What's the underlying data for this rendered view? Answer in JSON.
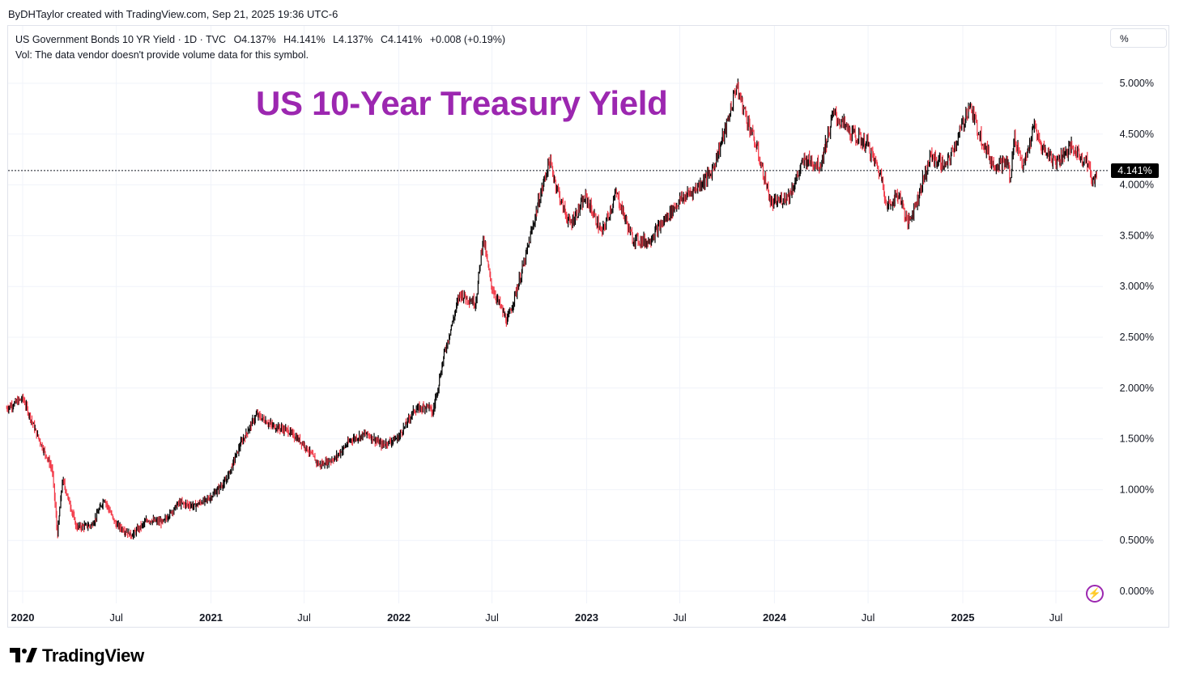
{
  "credit": "ByDHTaylor created with TradingView.com, Sep 21, 2025 19:36 UTC-6",
  "legend": {
    "symbol": "US Government Bonds 10 YR Yield · 1D · TVC",
    "open": "O4.137%",
    "high": "H4.141%",
    "low": "L4.137%",
    "close": "C4.141%",
    "change": "+0.008 (+0.19%)",
    "vol_note": "Vol: The data vendor doesn't provide volume data for this symbol."
  },
  "unit_label": "%",
  "headline": "US 10-Year Treasury Yield",
  "brand": "TradingView",
  "colors": {
    "up": "#000000",
    "down": "#f23645",
    "headline": "#9c27b0",
    "grid": "#f0f3fa"
  },
  "icons": {
    "flash": "lightning-icon",
    "logo": "tradingview-logo-icon"
  },
  "chart_data": {
    "type": "line",
    "title": "US 10-Year Treasury Yield",
    "xlabel": "",
    "ylabel": "",
    "ylim": [
      -0.05,
      5.1
    ],
    "y_ticks": [
      "0.000%",
      "0.500%",
      "1.000%",
      "1.500%",
      "2.000%",
      "2.500%",
      "3.000%",
      "3.500%",
      "4.000%",
      "4.500%",
      "5.000%"
    ],
    "x_ticks": [
      {
        "label": "2020",
        "date": "2020-01-01",
        "major": true
      },
      {
        "label": "Jul",
        "date": "2020-07-01",
        "major": false
      },
      {
        "label": "2021",
        "date": "2021-01-01",
        "major": true
      },
      {
        "label": "Jul",
        "date": "2021-07-01",
        "major": false
      },
      {
        "label": "2022",
        "date": "2022-01-01",
        "major": true
      },
      {
        "label": "Jul",
        "date": "2022-07-01",
        "major": false
      },
      {
        "label": "2023",
        "date": "2023-01-01",
        "major": true
      },
      {
        "label": "Jul",
        "date": "2023-07-01",
        "major": false
      },
      {
        "label": "2024",
        "date": "2024-01-01",
        "major": true
      },
      {
        "label": "Jul",
        "date": "2024-07-01",
        "major": false
      },
      {
        "label": "2025",
        "date": "2025-01-01",
        "major": true
      },
      {
        "label": "Jul",
        "date": "2025-07-01",
        "major": false
      }
    ],
    "last_price_label": "4.141%",
    "last_price": 4.141,
    "grid": true,
    "series": [
      {
        "x": [
          "2019-12-01",
          "2020-01-02",
          "2020-01-31",
          "2020-02-28",
          "2020-03-09",
          "2020-03-19",
          "2020-04-15",
          "2020-05-15",
          "2020-06-08",
          "2020-06-30",
          "2020-07-31",
          "2020-08-31",
          "2020-09-30",
          "2020-10-31",
          "2020-11-30",
          "2020-12-31",
          "2021-01-31",
          "2021-02-28",
          "2021-03-31",
          "2021-04-30",
          "2021-05-31",
          "2021-06-30",
          "2021-07-31",
          "2021-08-31",
          "2021-09-30",
          "2021-10-31",
          "2021-11-30",
          "2021-12-31",
          "2022-01-31",
          "2022-02-28",
          "2022-03-08",
          "2022-03-31",
          "2022-04-30",
          "2022-05-31",
          "2022-06-14",
          "2022-06-30",
          "2022-07-31",
          "2022-08-31",
          "2022-09-30",
          "2022-10-21",
          "2022-11-15",
          "2022-11-30",
          "2022-12-31",
          "2023-01-31",
          "2023-02-28",
          "2023-03-31",
          "2023-04-30",
          "2023-05-31",
          "2023-06-30",
          "2023-07-31",
          "2023-08-31",
          "2023-09-30",
          "2023-10-19",
          "2023-11-30",
          "2023-12-27",
          "2024-01-31",
          "2024-02-29",
          "2024-03-31",
          "2024-04-25",
          "2024-05-31",
          "2024-06-30",
          "2024-07-31",
          "2024-08-05",
          "2024-08-31",
          "2024-09-16",
          "2024-09-30",
          "2024-10-31",
          "2024-11-30",
          "2024-12-31",
          "2025-01-14",
          "2025-01-31",
          "2025-02-28",
          "2025-03-31",
          "2025-04-04",
          "2025-04-11",
          "2025-04-30",
          "2025-05-21",
          "2025-05-31",
          "2025-06-30",
          "2025-07-31",
          "2025-08-31",
          "2025-09-11",
          "2025-09-19"
        ],
        "values": [
          1.8,
          1.9,
          1.52,
          1.2,
          0.55,
          1.1,
          0.63,
          0.65,
          0.91,
          0.66,
          0.55,
          0.7,
          0.68,
          0.87,
          0.84,
          0.92,
          1.09,
          1.45,
          1.74,
          1.63,
          1.58,
          1.45,
          1.24,
          1.31,
          1.49,
          1.55,
          1.44,
          1.51,
          1.78,
          1.83,
          1.74,
          2.34,
          2.93,
          2.84,
          3.49,
          3.01,
          2.65,
          3.19,
          3.83,
          4.24,
          3.8,
          3.61,
          3.88,
          3.52,
          3.92,
          3.47,
          3.44,
          3.64,
          3.84,
          3.96,
          4.11,
          4.57,
          4.98,
          4.33,
          3.8,
          3.91,
          4.25,
          4.2,
          4.7,
          4.5,
          4.4,
          4.03,
          3.78,
          3.91,
          3.62,
          3.78,
          4.28,
          4.18,
          4.57,
          4.79,
          4.54,
          4.21,
          4.21,
          4.01,
          4.49,
          4.17,
          4.59,
          4.4,
          4.23,
          4.37,
          4.23,
          4.02,
          4.141
        ]
      }
    ]
  }
}
